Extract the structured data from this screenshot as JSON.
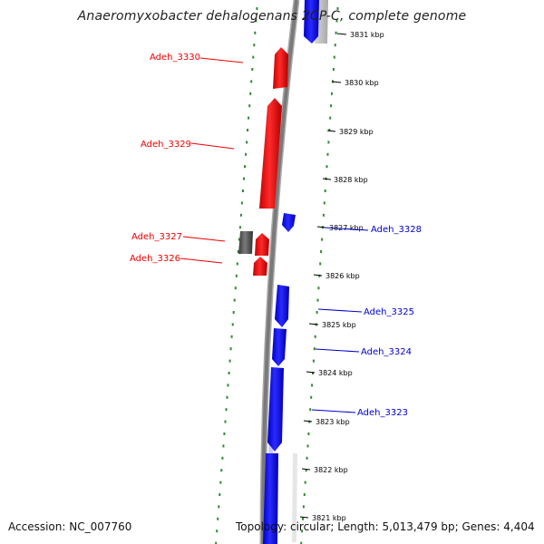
{
  "title": "Anaeromyxobacter dehalogenans 2CP-C, complete genome",
  "footer": {
    "accession": "Accession: NC_007760",
    "summary": "Topology: circular; Length: 5,013,479 bp; Genes: 4,404"
  },
  "colors": {
    "forward_gene": "#0000ee",
    "reverse_gene": "#ee0000",
    "other_feature": "#555555",
    "tick": "#2e8b2e",
    "backbone": "#808080"
  },
  "scale_labels": [
    "3831 kbp",
    "3830 kbp",
    "3829 kbp",
    "3828 kbp",
    "3827 kbp",
    "3826 kbp",
    "3825 kbp",
    "3824 kbp",
    "3823 kbp",
    "3822 kbp",
    "3821 kbp"
  ],
  "gene_labels": {
    "left": [
      "Adeh_3330",
      "Adeh_3329",
      "Adeh_3327",
      "Adeh_3326"
    ],
    "right": [
      "Adeh_3328",
      "Adeh_3325",
      "Adeh_3324",
      "Adeh_3323"
    ]
  }
}
